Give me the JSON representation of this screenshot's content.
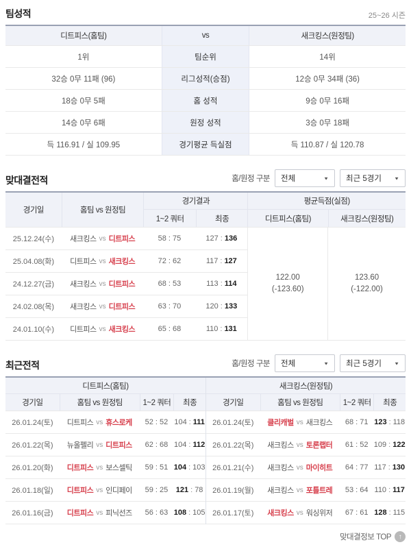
{
  "labels": {
    "vs": "vs",
    "colon": ":"
  },
  "icons": {
    "caret": "▼",
    "up_arrow": "↑"
  },
  "colors": {
    "accent_red": "#d7414e",
    "header_bg": "#f0f2f8",
    "mid_col_bg": "#eef1f9",
    "table_top_border": "#99a1b3"
  },
  "team_stats": {
    "title": "팀성적",
    "season": "25~26 시즌",
    "header": {
      "home": "디트피스(홈팀)",
      "vs": "vs",
      "away": "새크킹스(원정팀)"
    },
    "rows": [
      {
        "home": "1위",
        "label": "팀순위",
        "away": "14위"
      },
      {
        "home": "32승 0무 11패 (96)",
        "label": "리그성적(승점)",
        "away": "12승 0무 34패 (36)"
      },
      {
        "home": "18승 0무 5패",
        "label": "홈 성적",
        "away": "9승 0무 16패"
      },
      {
        "home": "14승 0무 6패",
        "label": "원정 성적",
        "away": "3승 0무 18패"
      },
      {
        "home": "득 116.91 / 실 109.95",
        "label": "경기평균 득실점",
        "away": "득 110.87 / 실 120.78"
      }
    ]
  },
  "h2h": {
    "title": "맞대결전적",
    "filters": {
      "label": "홈/원정 구분",
      "scope": "전체",
      "range": "최근 5경기"
    },
    "head": {
      "date": "경기일",
      "matchup": "홈팀 vs 원정팀",
      "result": "경기결과",
      "q12": "1~2 쿼터",
      "final": "최종",
      "avg": "평균득점(실점)",
      "avg_home": "디트피스(홈팀)",
      "avg_away": "새크킹스(원정팀)"
    },
    "rows": [
      {
        "date": "25.12.24(수)",
        "home": "새크킹스",
        "home_class": "",
        "away": "디트피스",
        "away_class": "win",
        "q12": "58 : 75",
        "fl": "127",
        "fl_class": "",
        "fr": "136",
        "fr_class": "hi"
      },
      {
        "date": "25.04.08(화)",
        "home": "디트피스",
        "home_class": "",
        "away": "새크킹스",
        "away_class": "win",
        "q12": "72 : 62",
        "fl": "117",
        "fl_class": "",
        "fr": "127",
        "fr_class": "hi"
      },
      {
        "date": "24.12.27(금)",
        "home": "새크킹스",
        "home_class": "",
        "away": "디트피스",
        "away_class": "win",
        "q12": "68 : 53",
        "fl": "113",
        "fl_class": "",
        "fr": "114",
        "fr_class": "hi"
      },
      {
        "date": "24.02.08(목)",
        "home": "새크킹스",
        "home_class": "",
        "away": "디트피스",
        "away_class": "win",
        "q12": "63 : 70",
        "fl": "120",
        "fl_class": "",
        "fr": "133",
        "fr_class": "hi"
      },
      {
        "date": "24.01.10(수)",
        "home": "디트피스",
        "home_class": "",
        "away": "새크킹스",
        "away_class": "win",
        "q12": "65 : 68",
        "fl": "110",
        "fl_class": "",
        "fr": "131",
        "fr_class": "hi"
      }
    ],
    "avg_home": {
      "value": "122.00",
      "sub": "(-123.60)"
    },
    "avg_away": {
      "value": "123.60",
      "sub": "(-122.00)"
    }
  },
  "recent": {
    "title": "최근전적",
    "filters": {
      "label": "홈/원정 구분",
      "scope": "전체",
      "range": "최근 5경기"
    },
    "home_header": "디트피스(홈팀)",
    "away_header": "새크킹스(원정팀)",
    "cols": {
      "date": "경기일",
      "matchup": "홈팀 vs 원정팀",
      "q12": "1~2 쿼터",
      "final": "최종"
    },
    "home_rows": [
      {
        "date": "26.01.24(토)",
        "home": "디트피스",
        "home_class": "",
        "away": "휴스로케",
        "away_class": "win",
        "q12": "52 : 52",
        "fl": "104",
        "fl_class": "",
        "fr": "111",
        "fr_class": "hi"
      },
      {
        "date": "26.01.22(목)",
        "home": "뉴올펠리",
        "home_class": "",
        "away": "디트피스",
        "away_class": "win",
        "q12": "62 : 68",
        "fl": "104",
        "fl_class": "",
        "fr": "112",
        "fr_class": "hi"
      },
      {
        "date": "26.01.20(화)",
        "home": "디트피스",
        "home_class": "win",
        "away": "보스셀틱",
        "away_class": "",
        "q12": "59 : 51",
        "fl": "104",
        "fl_class": "hi",
        "fr": "103",
        "fr_class": ""
      },
      {
        "date": "26.01.18(일)",
        "home": "디트피스",
        "home_class": "win",
        "away": "인디페이",
        "away_class": "",
        "q12": "59 : 25",
        "fl": "121",
        "fl_class": "hi",
        "fr": "78",
        "fr_class": ""
      },
      {
        "date": "26.01.16(금)",
        "home": "디트피스",
        "home_class": "win",
        "away": "피닉선즈",
        "away_class": "",
        "q12": "56 : 63",
        "fl": "108",
        "fl_class": "hi",
        "fr": "105",
        "fr_class": ""
      }
    ],
    "away_rows": [
      {
        "date": "26.01.24(토)",
        "home": "클리캐벌",
        "home_class": "win",
        "away": "새크킹스",
        "away_class": "",
        "q12": "68 : 71",
        "fl": "123",
        "fl_class": "hi",
        "fr": "118",
        "fr_class": ""
      },
      {
        "date": "26.01.22(목)",
        "home": "새크킹스",
        "home_class": "",
        "away": "토론랩터",
        "away_class": "win",
        "q12": "61 : 52",
        "fl": "109",
        "fl_class": "",
        "fr": "122",
        "fr_class": "hi"
      },
      {
        "date": "26.01.21(수)",
        "home": "새크킹스",
        "home_class": "",
        "away": "마이히트",
        "away_class": "win",
        "q12": "64 : 77",
        "fl": "117",
        "fl_class": "",
        "fr": "130",
        "fr_class": "hi"
      },
      {
        "date": "26.01.19(월)",
        "home": "새크킹스",
        "home_class": "",
        "away": "포틀트레",
        "away_class": "win",
        "q12": "53 : 64",
        "fl": "110",
        "fl_class": "",
        "fr": "117",
        "fr_class": "hi"
      },
      {
        "date": "26.01.17(토)",
        "home": "새크킹스",
        "home_class": "win",
        "away": "워싱위저",
        "away_class": "",
        "q12": "67 : 61",
        "fl": "128",
        "fl_class": "hi",
        "fr": "115",
        "fr_class": ""
      }
    ]
  },
  "footer": {
    "top_label": "맞대결정보 TOP"
  }
}
